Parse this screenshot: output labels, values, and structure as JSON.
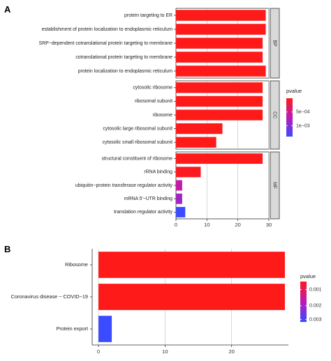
{
  "panel_a": {
    "label": "A"
  },
  "panel_b": {
    "label": "B"
  },
  "colors": {
    "high": "#ff1a1a",
    "mid": "#bb1ab6",
    "low": "#3b4bff",
    "grid": "#bdbdbd",
    "strip": "#d9d9d9",
    "panel_bg": "#ffffff"
  },
  "chart_data": [
    {
      "type": "bar",
      "orientation": "horizontal",
      "panel": "A",
      "xlim": [
        0,
        30
      ],
      "xticks": [
        0,
        10,
        20,
        30
      ],
      "grid": true,
      "legend": {
        "title": "pvalue",
        "labels": [
          "5e−04",
          "1e−03"
        ],
        "placement": "right"
      },
      "facets": [
        {
          "strip": "BP",
          "categories": [
            "protein targeting to ER",
            "establishment of protein localization to endoplasmic reticulum",
            "SRP−dependent cotranslational protein targeting to membrane",
            "cotranslational protein targeting to membrane",
            "protein localization to endoplasmic reticulum"
          ],
          "values": [
            29,
            29,
            28,
            28,
            29
          ],
          "pvalue_level": [
            0,
            0,
            0,
            0,
            0
          ]
        },
        {
          "strip": "CC",
          "categories": [
            "cytosolic ribosome",
            "ribosomal subunit",
            "ribosome",
            "cytosolic large ribosomal subunit",
            "cytosolic small ribosomal subunit"
          ],
          "values": [
            28,
            28,
            28,
            15,
            13
          ],
          "pvalue_level": [
            0,
            0,
            0,
            0,
            0
          ]
        },
        {
          "strip": "MF",
          "categories": [
            "structural constituent of ribosome",
            "rRNA binding",
            "ubiquitin−protein transferase regulator activity",
            "mRNA 5'−UTR binding",
            "translation regulator activity"
          ],
          "values": [
            28,
            8,
            2,
            2,
            3
          ],
          "pvalue_level": [
            0,
            0.02,
            0.45,
            0.6,
            1
          ]
        }
      ]
    },
    {
      "type": "bar",
      "orientation": "horizontal",
      "panel": "B",
      "xlim": [
        0,
        28
      ],
      "xticks": [
        0,
        10,
        20
      ],
      "grid": true,
      "legend": {
        "title": "pvalue",
        "labels": [
          "0.001",
          "0.002",
          "0.003"
        ],
        "placement": "right"
      },
      "categories": [
        "Ribosome",
        "Coronavirus disease − COVID−19",
        "Protein export"
      ],
      "values": [
        28,
        28,
        2
      ],
      "pvalue_level": [
        0,
        0,
        1
      ]
    }
  ]
}
